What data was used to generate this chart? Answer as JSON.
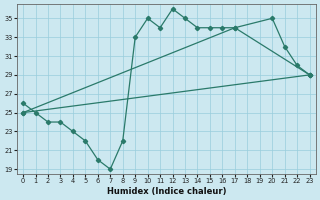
{
  "xlabel": "Humidex (Indice chaleur)",
  "ylabel": "",
  "background_color": "#cce8f0",
  "grid_color": "#99cedd",
  "line_color": "#2a7a6a",
  "xlim": [
    -0.5,
    23.5
  ],
  "ylim": [
    18.5,
    36.5
  ],
  "xticks": [
    0,
    1,
    2,
    3,
    4,
    5,
    6,
    7,
    8,
    9,
    10,
    11,
    12,
    13,
    14,
    15,
    16,
    17,
    18,
    19,
    20,
    21,
    22,
    23
  ],
  "yticks": [
    19,
    21,
    23,
    25,
    27,
    29,
    31,
    33,
    35
  ],
  "line1_x": [
    0,
    1,
    2,
    3,
    4,
    5,
    6,
    7,
    8,
    9,
    10,
    11,
    12,
    13,
    14,
    15,
    16,
    17,
    20,
    21,
    22,
    23
  ],
  "line1_y": [
    26,
    25,
    24,
    24,
    23,
    22,
    20,
    19,
    22,
    33,
    35,
    34,
    36,
    35,
    34,
    34,
    34,
    34,
    35,
    32,
    30,
    29
  ],
  "line3_x": [
    0,
    23
  ],
  "line3_y": [
    25,
    29
  ],
  "line4_x": [
    0,
    17,
    23
  ],
  "line4_y": [
    25,
    34,
    29
  ]
}
